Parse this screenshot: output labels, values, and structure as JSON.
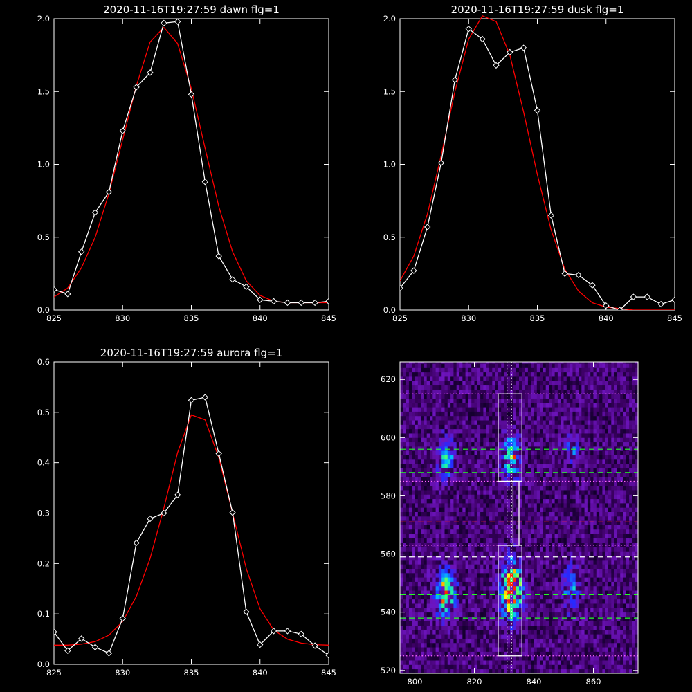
{
  "chart_data": [
    {
      "type": "line",
      "title": "2020-11-16T19:27:59 dawn flg=1",
      "xlim": [
        825,
        845
      ],
      "ylim": [
        0,
        2.0
      ],
      "xticks": [
        825,
        830,
        835,
        840,
        845
      ],
      "yticks": [
        0.0,
        0.5,
        1.0,
        1.5,
        2.0
      ],
      "xtick_labels": [
        "825",
        "830",
        "835",
        "840",
        "845"
      ],
      "ytick_labels": [
        "0.0",
        "0.5",
        "1.0",
        "1.5",
        "2.0"
      ],
      "series": [
        {
          "x": [
            825,
            826,
            827,
            828,
            829,
            830,
            831,
            832,
            833,
            834,
            835,
            836,
            837,
            838,
            839,
            840,
            841,
            842,
            843,
            844,
            845
          ],
          "values": [
            0.14,
            0.11,
            0.4,
            0.67,
            0.81,
            1.23,
            1.53,
            1.63,
            1.97,
            1.98,
            1.48,
            0.88,
            0.37,
            0.21,
            0.16,
            0.07,
            0.06,
            0.05,
            0.05,
            0.05,
            0.06
          ],
          "color": "#ffffff",
          "marker": "diamond"
        },
        {
          "x": [
            825,
            826,
            827,
            828,
            829,
            830,
            831,
            832,
            833,
            834,
            835,
            836,
            837,
            838,
            839,
            840,
            841,
            842,
            843,
            844,
            845
          ],
          "values": [
            0.09,
            0.15,
            0.29,
            0.5,
            0.8,
            1.17,
            1.54,
            1.84,
            1.94,
            1.83,
            1.52,
            1.11,
            0.71,
            0.4,
            0.2,
            0.1,
            0.06,
            0.05,
            0.05,
            0.05,
            0.05
          ],
          "color": "#ff0000"
        }
      ]
    },
    {
      "type": "line",
      "title": "2020-11-16T19:27:59 dusk flg=1",
      "xlim": [
        825,
        845
      ],
      "ylim": [
        0,
        2.0
      ],
      "xticks": [
        825,
        830,
        835,
        840,
        845
      ],
      "yticks": [
        0.0,
        0.5,
        1.0,
        1.5,
        2.0
      ],
      "xtick_labels": [
        "825",
        "830",
        "835",
        "840",
        "845"
      ],
      "ytick_labels": [
        "0.0",
        "0.5",
        "1.0",
        "1.5",
        "2.0"
      ],
      "series": [
        {
          "x": [
            825,
            826,
            827,
            828,
            829,
            830,
            831,
            832,
            833,
            834,
            835,
            836,
            837,
            838,
            839,
            840,
            841,
            842,
            843,
            844,
            845
          ],
          "values": [
            0.15,
            0.27,
            0.57,
            1.01,
            1.58,
            1.93,
            1.86,
            1.68,
            1.77,
            1.8,
            1.37,
            0.65,
            0.25,
            0.24,
            0.17,
            0.03,
            0.0,
            0.09,
            0.09,
            0.04,
            0.07
          ],
          "color": "#ffffff",
          "marker": "diamond"
        },
        {
          "x": [
            825,
            826,
            827,
            828,
            829,
            830,
            831,
            832,
            833,
            834,
            835,
            836,
            837,
            838,
            839,
            840,
            841,
            842,
            843,
            844,
            845
          ],
          "values": [
            0.2,
            0.37,
            0.66,
            1.06,
            1.5,
            1.86,
            2.02,
            1.98,
            1.75,
            1.36,
            0.93,
            0.55,
            0.28,
            0.13,
            0.05,
            0.02,
            0.01,
            0.0,
            0.0,
            0.0,
            0.0
          ],
          "color": "#ff0000"
        }
      ]
    },
    {
      "type": "line",
      "title": "2020-11-16T19:27:59 aurora flg=1",
      "xlim": [
        825,
        845
      ],
      "ylim": [
        0,
        0.6
      ],
      "xticks": [
        825,
        830,
        835,
        840,
        845
      ],
      "yticks": [
        0.0,
        0.1,
        0.2,
        0.3,
        0.4,
        0.5,
        0.6
      ],
      "xtick_labels": [
        "825",
        "830",
        "835",
        "840",
        "845"
      ],
      "ytick_labels": [
        "0.0",
        "0.1",
        "0.2",
        "0.3",
        "0.4",
        "0.5",
        "0.6"
      ],
      "series": [
        {
          "x": [
            825,
            826,
            827,
            828,
            829,
            830,
            831,
            832,
            833,
            834,
            835,
            836,
            837,
            838,
            839,
            840,
            841,
            842,
            843,
            844,
            845
          ],
          "values": [
            0.064,
            0.027,
            0.051,
            0.034,
            0.022,
            0.091,
            0.241,
            0.289,
            0.3,
            0.336,
            0.524,
            0.53,
            0.418,
            0.301,
            0.104,
            0.039,
            0.066,
            0.066,
            0.06,
            0.037,
            0.018
          ],
          "color": "#ffffff",
          "marker": "diamond"
        },
        {
          "x": [
            825,
            826,
            827,
            828,
            829,
            830,
            831,
            832,
            833,
            834,
            835,
            836,
            837,
            838,
            839,
            840,
            841,
            842,
            843,
            844,
            845
          ],
          "values": [
            0.038,
            0.038,
            0.04,
            0.045,
            0.058,
            0.085,
            0.135,
            0.21,
            0.31,
            0.42,
            0.495,
            0.485,
            0.41,
            0.3,
            0.19,
            0.11,
            0.068,
            0.05,
            0.042,
            0.039,
            0.038
          ],
          "color": "#ff0000"
        }
      ]
    },
    {
      "type": "heatmap",
      "title": "",
      "xlim": [
        795,
        875
      ],
      "ylim": [
        519,
        626
      ],
      "xticks": [
        800,
        820,
        840,
        860
      ],
      "yticks": [
        520,
        540,
        560,
        580,
        600,
        620
      ],
      "xtick_labels": [
        "800",
        "820",
        "840",
        "860"
      ],
      "ytick_labels": [
        "520",
        "540",
        "560",
        "580",
        "600",
        "620"
      ],
      "blobs": [
        {
          "x": 810,
          "y": 592,
          "sx": 2.0,
          "sy": 5.0,
          "amp": 0.5
        },
        {
          "x": 810,
          "y": 546,
          "sx": 2.5,
          "sy": 6.0,
          "amp": 0.7
        },
        {
          "x": 832,
          "y": 592,
          "sx": 2.2,
          "sy": 5.0,
          "amp": 0.65
        },
        {
          "x": 832,
          "y": 547,
          "sx": 2.5,
          "sy": 7.0,
          "amp": 0.95
        },
        {
          "x": 852,
          "y": 595,
          "sx": 2.0,
          "sy": 4.0,
          "amp": 0.3
        },
        {
          "x": 852,
          "y": 548,
          "sx": 2.0,
          "sy": 6.0,
          "amp": 0.4
        }
      ],
      "boxes": [
        {
          "x0": 828,
          "x1": 836,
          "y0": 585,
          "y1": 615
        },
        {
          "x0": 828,
          "x1": 836,
          "y0": 525,
          "y1": 563
        },
        {
          "x0": 833,
          "x1": 835,
          "y0": 563,
          "y1": 585
        }
      ],
      "hlines": [
        {
          "y": 615,
          "style": "dotted",
          "color": "#ff66ff"
        },
        {
          "y": 596,
          "style": "dashed",
          "color": "#22ff22"
        },
        {
          "y": 588,
          "style": "dashed",
          "color": "#22ff22"
        },
        {
          "y": 585,
          "style": "dotted",
          "color": "#ff66ff"
        },
        {
          "y": 571,
          "style": "dashed",
          "color": "#ff2020"
        },
        {
          "y": 563,
          "style": "dotted",
          "color": "#ff66ff"
        },
        {
          "y": 559,
          "style": "dashed",
          "color": "#ffffff"
        },
        {
          "y": 546,
          "style": "dashed",
          "color": "#22ff22"
        },
        {
          "y": 538,
          "style": "dashed",
          "color": "#22ff22"
        },
        {
          "y": 525,
          "style": "dotted",
          "color": "#ff66ff"
        }
      ],
      "vlines": [
        {
          "x": 831,
          "style": "dotted",
          "color": "#ffffff"
        },
        {
          "x": 832.5,
          "style": "dotted",
          "color": "#ffffff"
        }
      ]
    }
  ]
}
